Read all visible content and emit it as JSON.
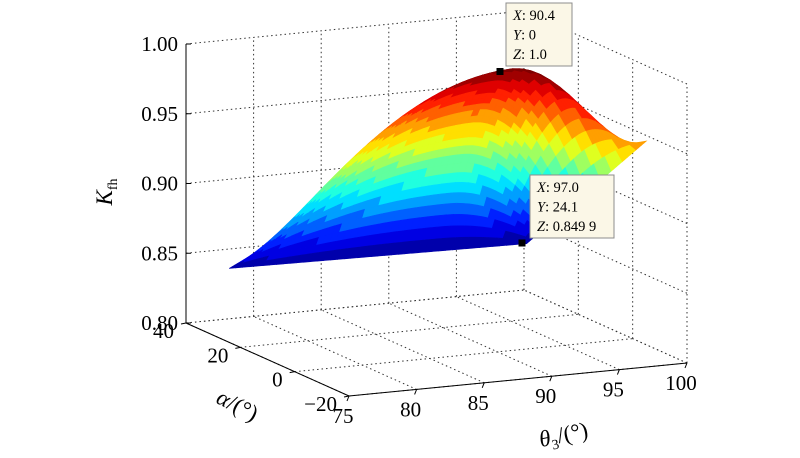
{
  "chart_data": {
    "type": "surface",
    "zlabel_main": "K",
    "zlabel_sub": "fh",
    "xlabel_main": "θ",
    "xlabel_sub": "3",
    "xlabel_unit": "/(°)",
    "ylabel_main": "α",
    "ylabel_unit": "/(°)",
    "x_ticks": [
      "75",
      "80",
      "85",
      "90",
      "95",
      "100"
    ],
    "y_ticks": [
      "40",
      "20",
      "0",
      "−20"
    ],
    "z_ticks": [
      "0.80",
      "0.85",
      "0.90",
      "0.95",
      "1.00"
    ],
    "xlim": [
      75,
      100
    ],
    "ylim": [
      -20,
      40
    ],
    "zlim": [
      0.8,
      1.0
    ],
    "grid": true,
    "colormap": "jet",
    "surface": {
      "x_range": [
        75,
        97
      ],
      "y_range": [
        -20,
        24.1
      ],
      "peak": {
        "x": 90.4,
        "y": 0,
        "z": 1.0
      },
      "corner_values": {
        "x75_y-20": 0.943,
        "x75_y24.1": 0.853,
        "x97_y-20": 0.962,
        "x97_y24.1": 0.8499
      }
    },
    "datatips": [
      {
        "x_label": "X",
        "x": "90.4",
        "y_label": "Y",
        "y": "0",
        "z_label": "Z",
        "z": "1.0"
      },
      {
        "x_label": "X",
        "x": "97.0",
        "y_label": "Y",
        "y": "24.1",
        "z_label": "Z",
        "z": "0.849 9"
      }
    ]
  }
}
